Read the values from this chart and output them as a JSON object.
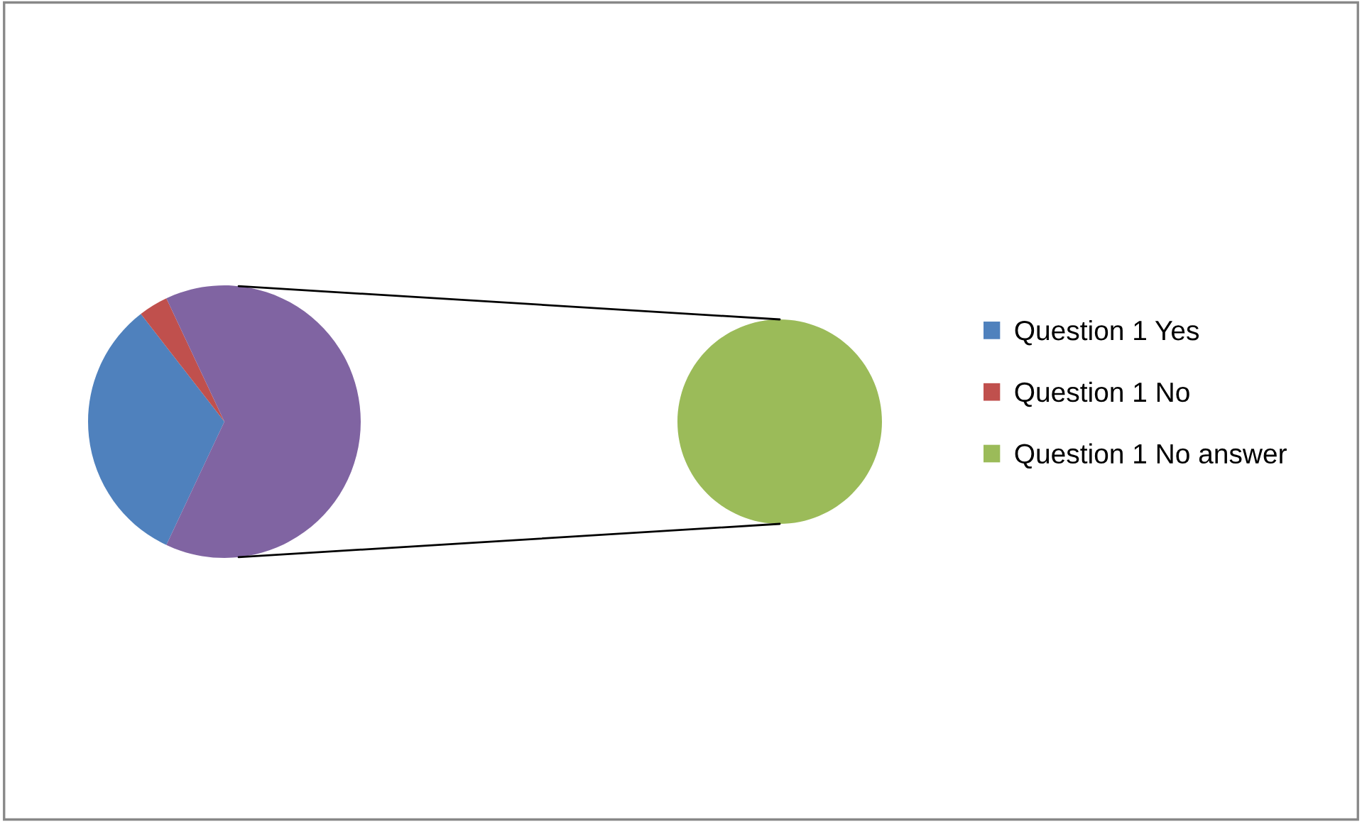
{
  "chart_data": [
    {
      "type": "pie",
      "categories": [
        "Question 1 Yes",
        "Question 1 No",
        null
      ],
      "values": [
        32.5,
        3.5,
        64
      ],
      "colors": [
        "#4f81bd",
        "#c0504d",
        "#8064a2"
      ],
      "legend": "right"
    },
    {
      "type": "pie",
      "categories": [
        "Question 1 No answer"
      ],
      "values": [
        100
      ],
      "colors": [
        "#9bbb59"
      ],
      "legend": "right"
    }
  ]
}
